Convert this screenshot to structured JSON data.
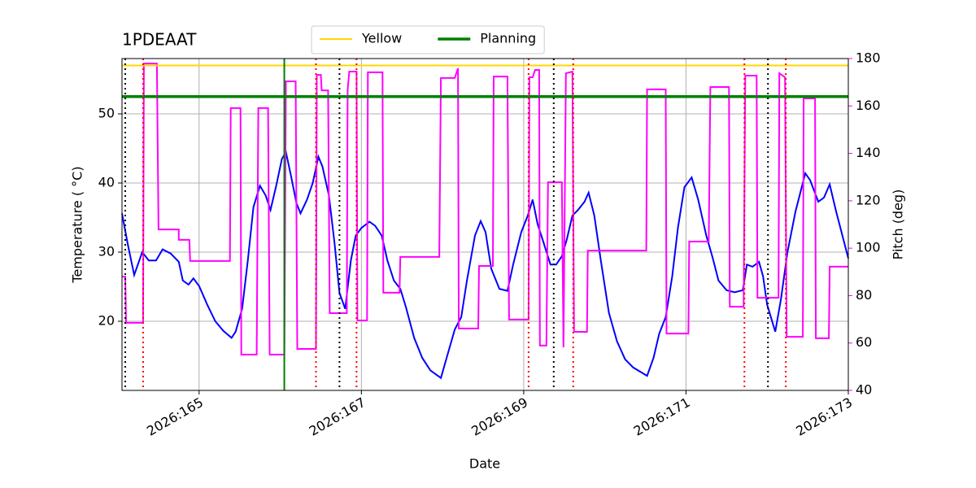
{
  "chart_data": {
    "type": "line",
    "title": "1PDEAAT",
    "x_label": "Date",
    "y_label": "Temperature ( °C)",
    "y2_label": "Pitch (deg)",
    "xlim": [
      164.05,
      173
    ],
    "xticks": [
      {
        "value": 165,
        "label": "2026:165"
      },
      {
        "value": 167,
        "label": "2026:167"
      },
      {
        "value": 169,
        "label": "2026:169"
      },
      {
        "value": 171,
        "label": "2026:171"
      },
      {
        "value": 173,
        "label": "2026:173"
      }
    ],
    "ylim": [
      10,
      58
    ],
    "yticks": [
      20,
      30,
      40,
      50
    ],
    "y2lim": [
      40,
      180
    ],
    "y2ticks": [
      40,
      60,
      80,
      100,
      120,
      140,
      160,
      180
    ],
    "y2_color": "#ff00ff",
    "grid": true,
    "legend": "top",
    "series": [
      {
        "color": "#0000ff",
        "x": [
          164.05,
          164.12,
          164.2,
          164.3,
          164.38,
          164.47,
          164.55,
          164.65,
          164.75,
          164.8,
          164.87,
          164.93,
          165.0,
          165.1,
          165.2,
          165.3,
          165.4,
          165.45,
          165.53,
          165.6,
          165.67,
          165.75,
          165.82,
          165.88,
          165.95,
          166.02,
          166.07,
          166.13,
          166.2,
          166.25,
          166.33,
          166.4,
          166.47,
          166.52,
          166.6,
          166.67,
          166.73,
          166.8,
          166.87,
          166.93,
          167.0,
          167.1,
          167.17,
          167.25,
          167.32,
          167.4,
          167.48,
          167.55,
          167.65,
          167.75,
          167.85,
          167.98,
          168.05,
          168.15,
          168.23,
          168.3,
          168.4,
          168.47,
          168.53,
          168.6,
          168.7,
          168.8,
          168.87,
          168.97,
          169.05,
          169.11,
          169.17,
          169.25,
          169.33,
          169.4,
          169.47,
          169.53,
          169.6,
          169.67,
          169.75,
          169.8,
          169.87,
          169.95,
          170.05,
          170.15,
          170.25,
          170.35,
          170.45,
          170.52,
          170.6,
          170.67,
          170.75,
          170.83,
          170.9,
          170.98,
          171.07,
          171.15,
          171.25,
          171.33,
          171.4,
          171.5,
          171.6,
          171.7,
          171.75,
          171.82,
          171.9,
          171.95,
          172.0,
          172.1,
          172.17,
          172.25,
          172.35,
          172.47,
          172.53,
          172.63,
          172.7,
          172.77,
          172.85,
          173.0
        ],
        "values": [
          35.6,
          31.2,
          26.7,
          30.0,
          28.8,
          28.8,
          30.4,
          29.8,
          28.6,
          25.9,
          25.3,
          26.2,
          25.1,
          22.4,
          20.0,
          18.6,
          17.6,
          18.5,
          21.8,
          28.8,
          36.5,
          39.6,
          38.2,
          36.1,
          39.6,
          43.5,
          44.5,
          41.2,
          37.1,
          35.6,
          37.6,
          40.0,
          43.8,
          42.4,
          38.2,
          31.2,
          24.1,
          21.8,
          28.8,
          32.4,
          33.5,
          34.4,
          33.8,
          32.4,
          28.8,
          25.9,
          24.7,
          22.0,
          17.6,
          14.7,
          12.9,
          11.8,
          14.7,
          18.8,
          20.6,
          25.9,
          32.4,
          34.5,
          32.9,
          27.6,
          24.7,
          24.4,
          28.2,
          32.9,
          35.3,
          37.6,
          34.1,
          31.2,
          28.2,
          28.2,
          29.4,
          31.8,
          35.3,
          36.1,
          37.3,
          38.6,
          35.3,
          28.8,
          21.2,
          17.1,
          14.5,
          13.3,
          12.6,
          12.1,
          14.7,
          18.2,
          20.6,
          26.5,
          33.5,
          39.4,
          40.8,
          37.6,
          32.4,
          29.1,
          25.9,
          24.5,
          24.2,
          24.5,
          28.2,
          27.9,
          28.6,
          26.5,
          22.4,
          18.5,
          23.2,
          30.0,
          35.9,
          41.4,
          40.4,
          37.3,
          37.9,
          39.8,
          35.9,
          29.1
        ]
      },
      {
        "color": "#ff00ff",
        "axis": "y2",
        "x": [
          164.05,
          164.09,
          164.1,
          164.31,
          164.32,
          164.48,
          164.5,
          164.75,
          164.75,
          164.88,
          164.89,
          165.38,
          165.39,
          165.51,
          165.52,
          165.71,
          165.73,
          165.85,
          165.87,
          166.05,
          166.07,
          166.19,
          166.21,
          166.44,
          166.45,
          166.5,
          166.51,
          166.59,
          166.61,
          166.82,
          166.83,
          166.85,
          166.94,
          166.95,
          167.07,
          167.08,
          167.26,
          167.27,
          167.47,
          167.48,
          167.96,
          167.98,
          168.15,
          168.19,
          168.2,
          168.44,
          168.45,
          168.62,
          168.63,
          168.8,
          168.82,
          169.06,
          169.07,
          169.11,
          169.14,
          169.19,
          169.2,
          169.28,
          169.3,
          169.47,
          169.49,
          169.52,
          169.6,
          169.62,
          169.78,
          169.79,
          170.51,
          170.52,
          170.75,
          170.76,
          171.03,
          171.04,
          171.28,
          171.3,
          171.53,
          171.54,
          171.71,
          171.73,
          171.87,
          171.88,
          172.14,
          172.15,
          172.22,
          172.24,
          172.44,
          172.45,
          172.59,
          172.6,
          172.76,
          172.77,
          173.0
        ],
        "values": [
          88.0,
          88.0,
          68.5,
          68.5,
          177.9,
          177.9,
          107.9,
          107.9,
          103.5,
          103.5,
          94.6,
          94.6,
          159.1,
          159.1,
          55.1,
          55.1,
          159.1,
          159.1,
          55.1,
          55.1,
          170.4,
          170.4,
          57.5,
          57.5,
          173.1,
          173.1,
          166.6,
          166.6,
          72.6,
          72.6,
          166.6,
          174.5,
          174.5,
          69.5,
          69.5,
          174.2,
          174.2,
          81.2,
          81.2,
          96.3,
          96.3,
          171.8,
          171.8,
          175.9,
          66.1,
          66.1,
          92.5,
          92.5,
          172.4,
          172.4,
          69.9,
          69.9,
          172.1,
          172.1,
          175.2,
          175.2,
          58.9,
          58.9,
          127.8,
          127.8,
          58.2,
          173.8,
          174.5,
          64.7,
          64.7,
          99.0,
          99.0,
          167.0,
          167.0,
          64.0,
          64.0,
          102.8,
          102.8,
          168.0,
          168.0,
          75.3,
          75.3,
          172.8,
          172.8,
          79.1,
          79.1,
          173.8,
          172.1,
          62.6,
          62.6,
          163.2,
          163.2,
          62.0,
          62.0,
          92.2,
          92.2
        ]
      }
    ],
    "hlines": [
      {
        "name": "Yellow",
        "color": "#ffd700",
        "value": 57
      },
      {
        "name": "Planning",
        "color": "#008000",
        "value": 52.5
      }
    ],
    "vlines": [
      {
        "color": "#008000",
        "style": "solid",
        "x": [
          166.05
        ]
      },
      {
        "color": "#000000",
        "style": "dotted",
        "x": [
          164.09,
          166.73,
          169.37,
          172.01
        ]
      },
      {
        "color": "#ff0000",
        "style": "dotted",
        "x": [
          164.31,
          166.44,
          166.94,
          169.06,
          169.61,
          171.72,
          172.23
        ]
      }
    ]
  }
}
